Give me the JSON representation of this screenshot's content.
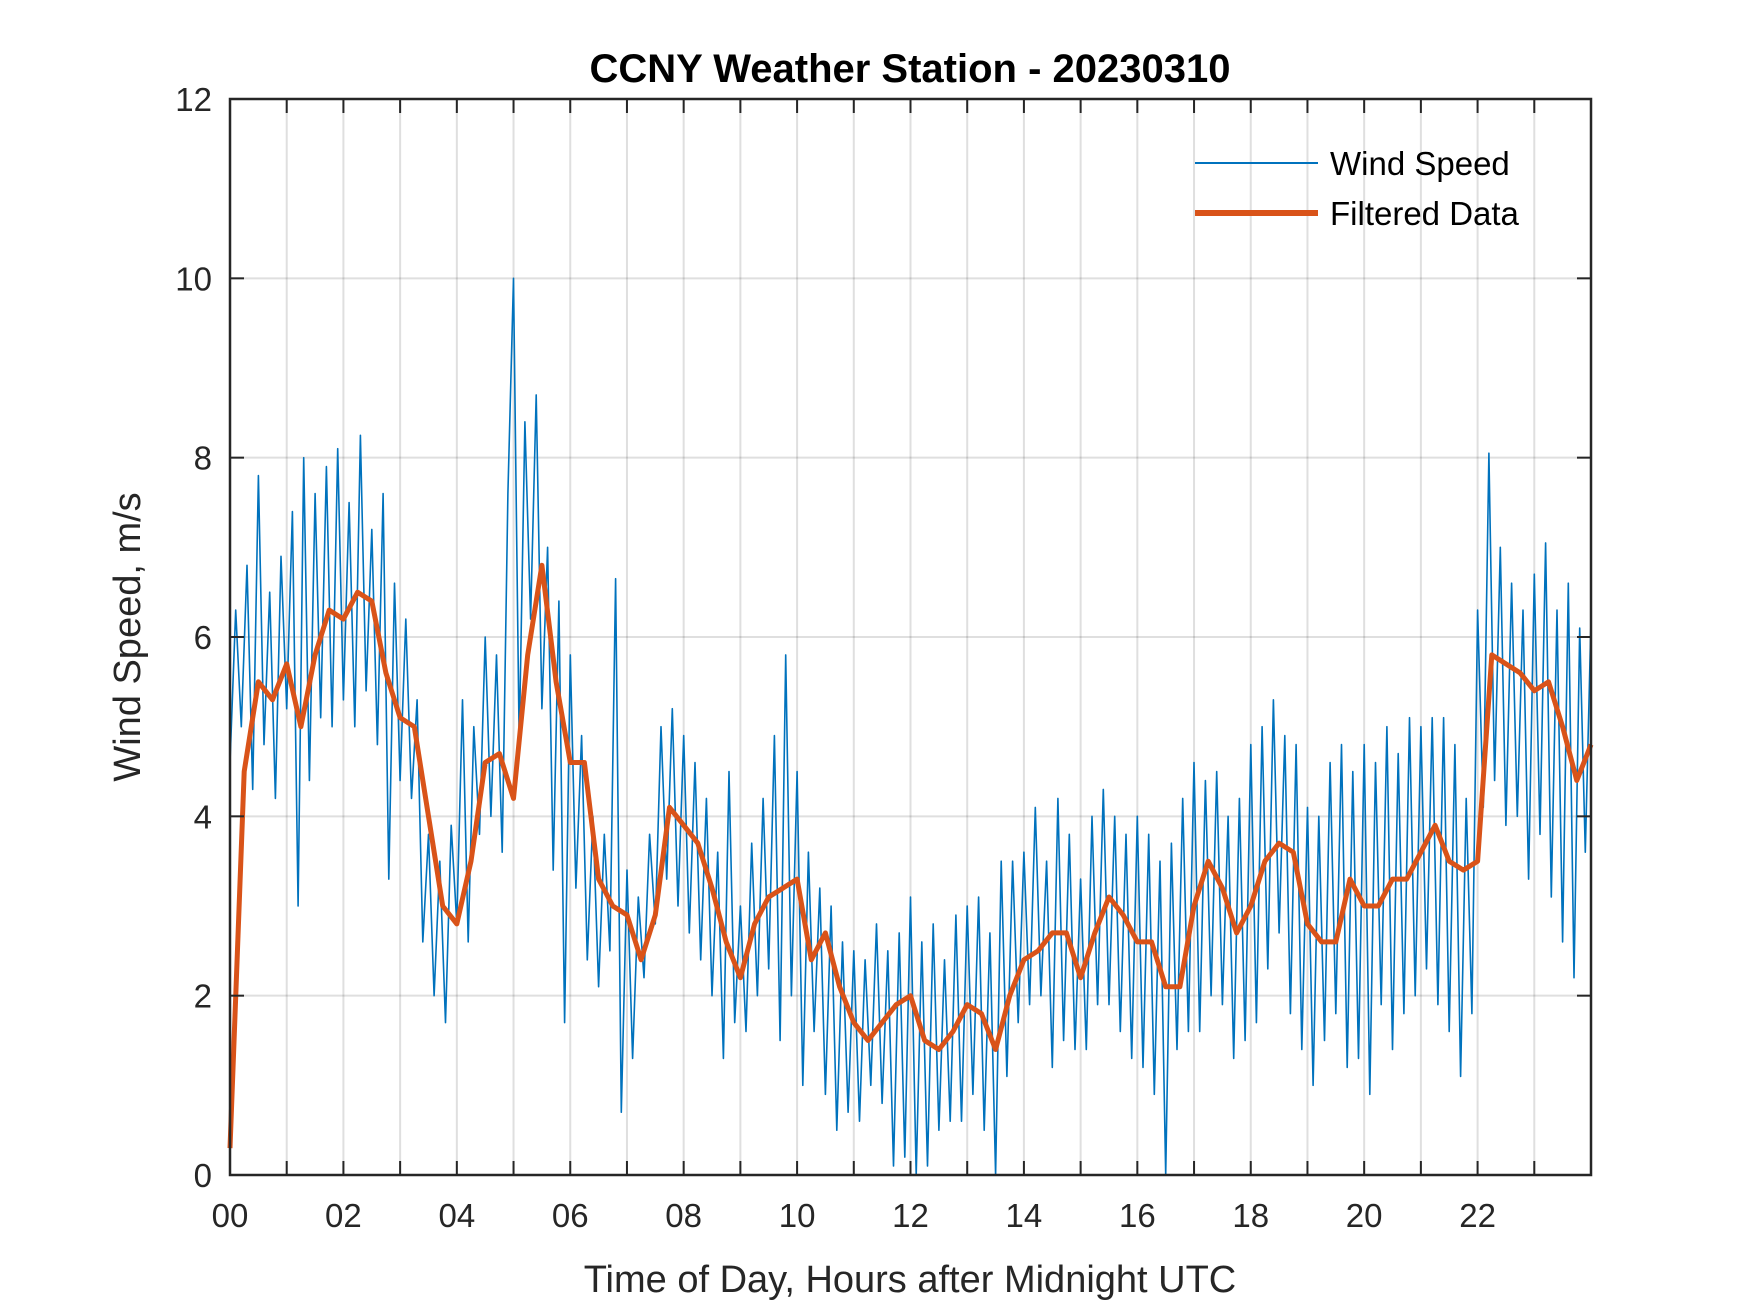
{
  "chart_data": {
    "type": "line",
    "title": "CCNY Weather Station - 20230310",
    "xlabel": "Time of Day, Hours after Midnight UTC",
    "ylabel": "Wind Speed, m/s",
    "xlim": [
      0,
      24
    ],
    "ylim": [
      0,
      12
    ],
    "xticks": [
      0,
      2,
      4,
      6,
      8,
      10,
      12,
      14,
      16,
      18,
      20,
      22
    ],
    "xtick_labels": [
      "00",
      "02",
      "04",
      "06",
      "08",
      "10",
      "12",
      "14",
      "16",
      "18",
      "20",
      "22"
    ],
    "yticks": [
      0,
      2,
      4,
      6,
      8,
      10,
      12
    ],
    "ytick_labels": [
      "0",
      "2",
      "4",
      "6",
      "8",
      "10",
      "12"
    ],
    "grid": true,
    "legend_position": "top-right",
    "series": [
      {
        "name": "Wind Speed",
        "color": "#0072BD",
        "x_start": 0,
        "x_step": 0.1,
        "values": [
          4.6,
          6.3,
          5.0,
          6.8,
          4.3,
          7.8,
          4.8,
          6.5,
          4.2,
          6.9,
          5.2,
          7.4,
          3.0,
          8.0,
          4.4,
          7.6,
          5.1,
          7.9,
          5.0,
          8.1,
          5.3,
          7.5,
          5.0,
          8.25,
          5.4,
          7.2,
          4.8,
          7.6,
          3.3,
          6.6,
          4.4,
          6.2,
          4.2,
          5.3,
          2.6,
          3.8,
          2.0,
          3.5,
          1.7,
          3.9,
          2.8,
          5.3,
          2.6,
          5.0,
          3.8,
          6.0,
          4.0,
          5.8,
          3.6,
          7.6,
          10.0,
          4.8,
          8.4,
          6.2,
          8.7,
          5.2,
          7.0,
          3.4,
          6.4,
          1.7,
          5.8,
          3.2,
          4.9,
          2.4,
          4.0,
          2.1,
          3.8,
          2.5,
          6.65,
          0.7,
          3.4,
          1.3,
          3.1,
          2.2,
          3.8,
          2.8,
          5.0,
          3.3,
          5.2,
          3.0,
          4.9,
          2.7,
          4.6,
          2.4,
          4.2,
          2.0,
          3.6,
          1.3,
          4.5,
          1.7,
          3.0,
          1.6,
          3.7,
          2.0,
          4.2,
          2.3,
          4.9,
          1.5,
          5.8,
          2.0,
          4.5,
          1.0,
          3.6,
          1.6,
          3.2,
          0.9,
          3.0,
          0.5,
          2.6,
          0.7,
          2.5,
          0.6,
          2.4,
          1.0,
          2.8,
          0.8,
          2.5,
          0.1,
          2.7,
          0.2,
          3.1,
          0.0,
          2.6,
          0.1,
          2.8,
          0.5,
          2.4,
          0.6,
          2.9,
          0.6,
          3.0,
          0.9,
          3.1,
          0.5,
          2.7,
          0.0,
          3.5,
          1.1,
          3.5,
          1.7,
          3.6,
          1.9,
          4.1,
          2.0,
          3.5,
          1.2,
          4.2,
          1.5,
          3.8,
          1.4,
          3.3,
          1.4,
          4.0,
          1.9,
          4.3,
          1.9,
          4.0,
          1.6,
          3.8,
          1.3,
          4.0,
          1.2,
          3.8,
          0.9,
          3.5,
          0.0,
          3.7,
          1.4,
          4.2,
          1.6,
          4.6,
          1.6,
          4.4,
          2.0,
          4.5,
          1.9,
          4.0,
          1.3,
          4.2,
          1.5,
          4.8,
          1.7,
          5.0,
          2.3,
          5.3,
          2.7,
          4.9,
          1.8,
          4.8,
          1.4,
          4.1,
          1.0,
          4.0,
          1.5,
          4.6,
          1.8,
          4.8,
          1.2,
          4.5,
          1.3,
          4.8,
          0.9,
          4.6,
          1.9,
          5.0,
          1.4,
          4.7,
          1.8,
          5.1,
          2.0,
          5.0,
          2.3,
          5.1,
          1.9,
          5.1,
          1.6,
          4.8,
          1.1,
          4.2,
          1.8,
          6.3,
          4.1,
          8.05,
          4.4,
          7.0,
          3.9,
          6.6,
          4.0,
          6.3,
          3.3,
          6.7,
          3.8,
          7.05,
          3.1,
          6.3,
          2.6,
          6.6,
          2.2,
          6.1,
          3.6,
          6.2
        ]
      },
      {
        "name": "Filtered Data",
        "color": "#D95319",
        "x_start": 0,
        "x_step": 0.25,
        "values": [
          0.3,
          4.5,
          5.5,
          5.3,
          5.7,
          5.0,
          5.8,
          6.3,
          6.2,
          6.5,
          6.4,
          5.6,
          5.1,
          5.0,
          4.0,
          3.0,
          2.8,
          3.5,
          4.6,
          4.7,
          4.2,
          5.8,
          6.8,
          5.5,
          4.6,
          4.6,
          3.3,
          3.0,
          2.9,
          2.4,
          2.9,
          4.1,
          3.9,
          3.7,
          3.2,
          2.6,
          2.2,
          2.8,
          3.1,
          3.2,
          3.3,
          2.4,
          2.7,
          2.1,
          1.7,
          1.5,
          1.7,
          1.9,
          2.0,
          1.5,
          1.4,
          1.6,
          1.9,
          1.8,
          1.4,
          2.0,
          2.4,
          2.5,
          2.7,
          2.7,
          2.2,
          2.7,
          3.1,
          2.9,
          2.6,
          2.6,
          2.1,
          2.1,
          3.0,
          3.5,
          3.2,
          2.7,
          3.0,
          3.5,
          3.7,
          3.6,
          2.8,
          2.6,
          2.6,
          3.3,
          3.0,
          3.0,
          3.3,
          3.3,
          3.6,
          3.9,
          3.5,
          3.4,
          3.5,
          5.8,
          5.7,
          5.6,
          5.4,
          5.5,
          5.0,
          4.4,
          4.8
        ]
      }
    ]
  }
}
